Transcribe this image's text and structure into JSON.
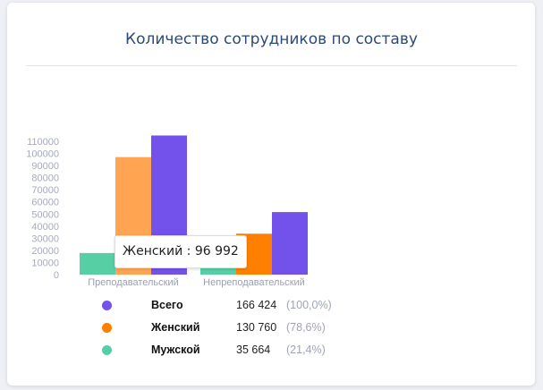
{
  "chart_data": {
    "type": "bar",
    "title": "Количество сотрудников по составу",
    "categories": [
      "Преподавательский",
      "Непреподавательский"
    ],
    "series": [
      {
        "name": "Мужской",
        "color": "#57cfa4",
        "values": [
          17832,
          17832
        ]
      },
      {
        "name": "Женский",
        "color": "#ff7f00",
        "values": [
          96992,
          33768
        ]
      },
      {
        "name": "Всего",
        "color": "#7252ea",
        "values": [
          114824,
          51600
        ]
      }
    ],
    "hover_color": "#ffa552",
    "yticks": [
      0,
      10000,
      20000,
      30000,
      40000,
      50000,
      60000,
      70000,
      80000,
      90000,
      100000,
      110000
    ],
    "ylim": [
      0,
      110000
    ],
    "tooltip": "Женский : 96 992",
    "legend": [
      {
        "name": "Всего",
        "color": "#7252ea",
        "value": "166 424",
        "pct": "(100,0%)"
      },
      {
        "name": "Женский",
        "color": "#ff7f00",
        "value": "130 760",
        "pct": "(78,6%)"
      },
      {
        "name": "Мужской",
        "color": "#57cfa4",
        "value": "35 664",
        "pct": "(21,4%)"
      }
    ]
  }
}
